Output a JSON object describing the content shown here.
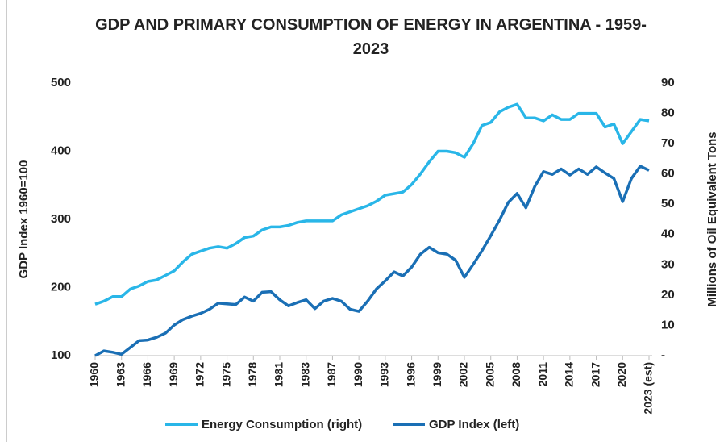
{
  "chart_data": {
    "type": "line",
    "title": "GDP AND PRIMARY CONSUMPTION OF ENERGY IN ARGENTINA - 1959-2023",
    "ylabel": "GDP Index 1960=100",
    "y2label": "Millions of Oil Equivalent Tons",
    "categories": [
      "1960",
      null,
      null,
      "1963",
      null,
      null,
      "1966",
      null,
      null,
      "1969",
      null,
      null,
      "1972",
      null,
      null,
      "1975",
      null,
      null,
      "1978",
      null,
      null,
      "1981",
      null,
      null,
      "1983",
      null,
      null,
      "1987",
      null,
      null,
      "1990",
      null,
      null,
      "1993",
      null,
      null,
      "1996",
      null,
      null,
      "1999",
      null,
      null,
      "2002",
      null,
      null,
      "2005",
      null,
      null,
      "2008",
      null,
      null,
      "2011",
      null,
      null,
      "2014",
      null,
      null,
      "2017",
      null,
      null,
      "2020",
      null,
      null,
      "2023 (est)"
    ],
    "ylim": [
      100,
      500
    ],
    "yticks": [
      100,
      200,
      300,
      400,
      500
    ],
    "y2lim": [
      0,
      90
    ],
    "y2ticks": [
      {
        "value": 0,
        "label": "-"
      },
      10,
      20,
      30,
      40,
      50,
      60,
      70,
      80,
      90
    ],
    "legend": "bottom",
    "series": [
      {
        "name": "Energy Consumption (right)",
        "color": "#29b6e8",
        "axis": "y2",
        "values": [
          17,
          18,
          19.5,
          19.5,
          22,
          23,
          24.5,
          25,
          26.5,
          28,
          31,
          33.5,
          34.5,
          35.5,
          36,
          35.5,
          37,
          39,
          39.5,
          41.5,
          42.5,
          42.5,
          43,
          44,
          44.5,
          44.5,
          44.5,
          44.5,
          46.5,
          47.5,
          48.5,
          49.5,
          51,
          53,
          53.5,
          54,
          56.5,
          60,
          64,
          67.5,
          67.5,
          67,
          65.5,
          70,
          76,
          77,
          80.5,
          82,
          83,
          78.5,
          78.5,
          77.5,
          79.5,
          78,
          78,
          80,
          80,
          80,
          75.5,
          76.5,
          70,
          74,
          78,
          77.5
        ]
      },
      {
        "name": "GDP Index (left)",
        "color": "#1a6fb5",
        "values": [
          100,
          107,
          105,
          102,
          112,
          122,
          123,
          127,
          133,
          145,
          153,
          158,
          162,
          168,
          177,
          176,
          175,
          186,
          180,
          193,
          194,
          182,
          173,
          178,
          182,
          169,
          180,
          184,
          180,
          168,
          165,
          180,
          198,
          210,
          223,
          217,
          230,
          249,
          259,
          251,
          249,
          240,
          215,
          234,
          254,
          276,
          299,
          325,
          338,
          317,
          348,
          370,
          366,
          374,
          365,
          374,
          366,
          377,
          368,
          360,
          326,
          360,
          378,
          372
        ]
      }
    ]
  }
}
